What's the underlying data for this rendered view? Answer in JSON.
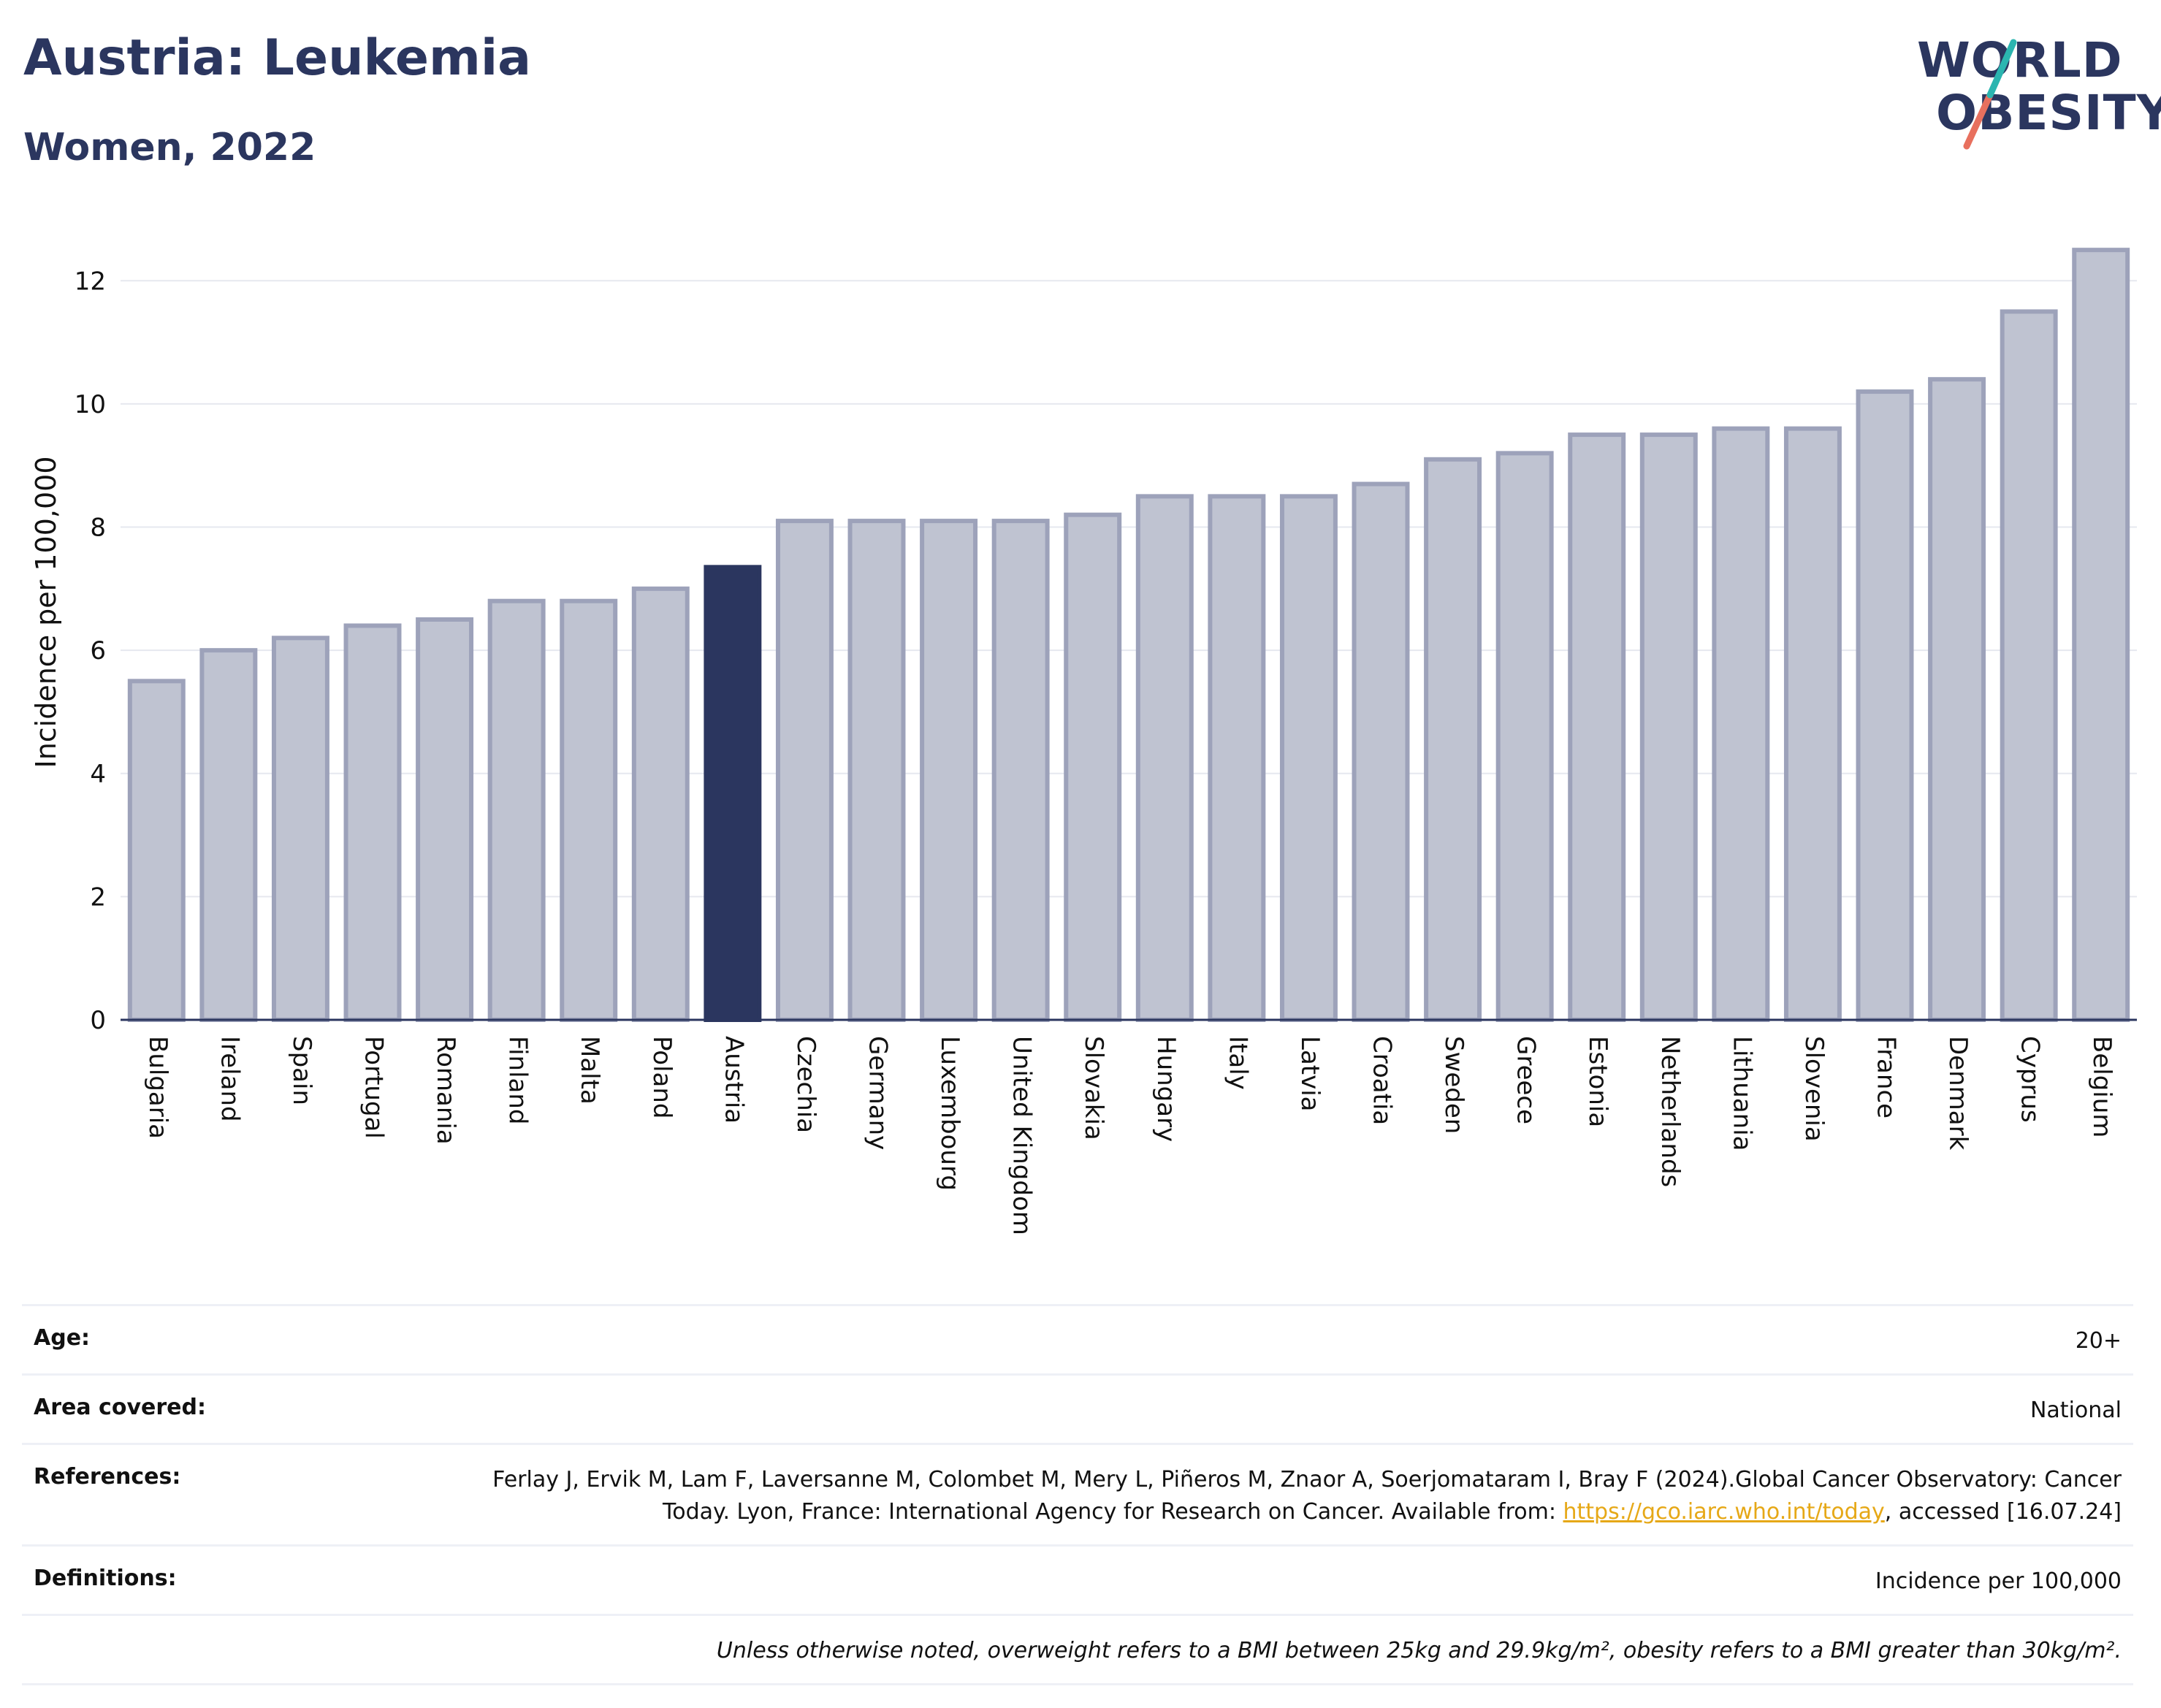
{
  "header": {
    "title": "Austria: Leukemia",
    "subtitle": "Women, 2022",
    "logo_line1": "WORLD",
    "logo_line2": "OBESITY"
  },
  "colors": {
    "title": "#2b365f",
    "bar_default": "#bfc3d1",
    "bar_default_border": "#9da2ba",
    "bar_highlight": "#2b365f",
    "logo_teal": "#2bb5b0",
    "logo_coral": "#e8705e",
    "link": "#e6a817"
  },
  "chart_data": {
    "type": "bar",
    "ylabel": "Incidence per 100,000",
    "xlabel": "",
    "ylim": [
      0,
      13
    ],
    "yticks": [
      0,
      2,
      4,
      6,
      8,
      10,
      12
    ],
    "grid": true,
    "highlight": "Austria",
    "categories": [
      "Bulgaria",
      "Ireland",
      "Spain",
      "Portugal",
      "Romania",
      "Finland",
      "Malta",
      "Poland",
      "Austria",
      "Czechia",
      "Germany",
      "Luxembourg",
      "United Kingdom",
      "Slovakia",
      "Hungary",
      "Italy",
      "Latvia",
      "Croatia",
      "Sweden",
      "Greece",
      "Estonia",
      "Netherlands",
      "Lithuania",
      "Slovenia",
      "France",
      "Denmark",
      "Cyprus",
      "Belgium"
    ],
    "values": [
      5.5,
      6.0,
      6.2,
      6.4,
      6.5,
      6.8,
      6.8,
      7.0,
      7.35,
      8.1,
      8.1,
      8.1,
      8.1,
      8.2,
      8.5,
      8.5,
      8.5,
      8.7,
      9.1,
      9.2,
      9.5,
      9.5,
      9.6,
      9.6,
      10.2,
      10.4,
      11.5,
      12.5
    ]
  },
  "info": {
    "age_label": "Age:",
    "age_value": "20+",
    "area_label": "Area covered:",
    "area_value": "National",
    "refs_label": "References:",
    "refs_text": "Ferlay J, Ervik M, Lam F, Laversanne M, Colombet M, Mery L, Piñeros M, Znaor A, Soerjomataram I, Bray F (2024).Global Cancer Observatory: Cancer Today. Lyon, France: International Agency for Research on Cancer. Available from: ",
    "refs_link": "https://gco.iarc.who.int/today",
    "refs_tail": ", accessed [16.07.24]",
    "defs_label": "Definitions:",
    "defs_value": "Incidence per 100,000",
    "note": "Unless otherwise noted, overweight refers to a BMI between 25kg and 29.9kg/m², obesity refers to a BMI greater than 30kg/m²."
  }
}
